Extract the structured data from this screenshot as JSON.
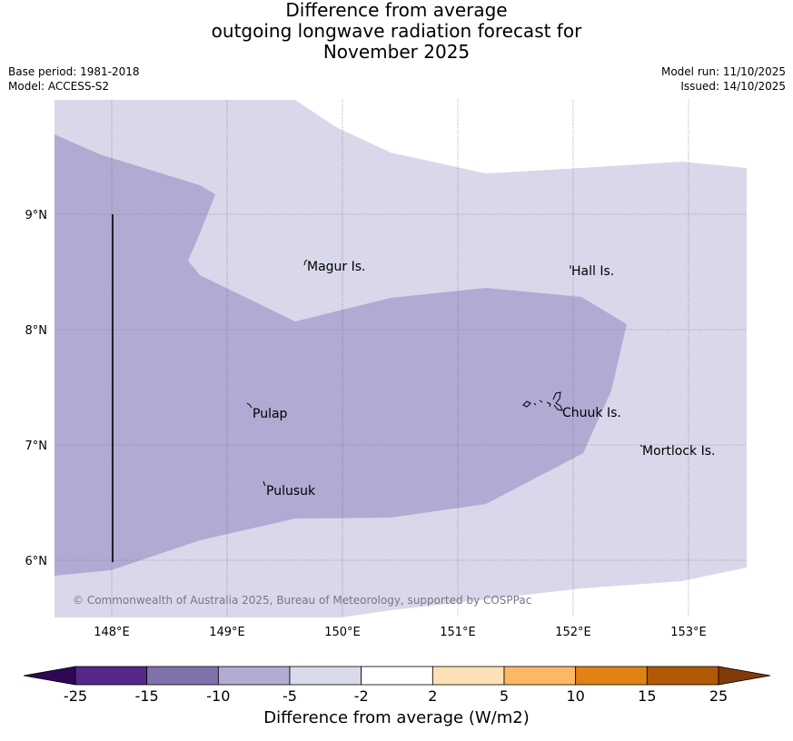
{
  "title": {
    "line1": "Difference from average",
    "line2": "outgoing longwave radiation forecast for",
    "line3": "November 2025"
  },
  "meta": {
    "base_period": "Base period: 1981-2018",
    "model": "Model: ACCESS-S2",
    "model_run": "Model run: 11/10/2025",
    "issued": "Issued: 14/10/2025"
  },
  "map": {
    "lon_ticks": [
      "148°E",
      "149°E",
      "150°E",
      "151°E",
      "152°E",
      "153°E"
    ],
    "lat_ticks": [
      "9°N",
      "8°N",
      "7°N",
      "6°N"
    ],
    "places": [
      "Magur Is.",
      "Hall Is.",
      "Pulap",
      "Chuuk Is.",
      "Mortlock Is.",
      "Pulusuk"
    ],
    "copyright": "© Commonwealth of Australia 2025, Bureau of Meteorology, supported by COSPPac",
    "colors": {
      "light_lavender": "#d8d8ea",
      "medium_lavender": "#b0abd2",
      "grid": "#555566"
    }
  },
  "colorbar": {
    "label": "Difference from average (W/m2)",
    "ticks": [
      "-25",
      "-15",
      "-10",
      "-5",
      "-2",
      "2",
      "5",
      "10",
      "15",
      "25"
    ],
    "colors": [
      "#2e0854",
      "#542788",
      "#8073ac",
      "#b2abd2",
      "#d8daeb",
      "#ffffff",
      "#fee0b6",
      "#fdb863",
      "#e08214",
      "#b35806",
      "#7f3b08"
    ]
  }
}
